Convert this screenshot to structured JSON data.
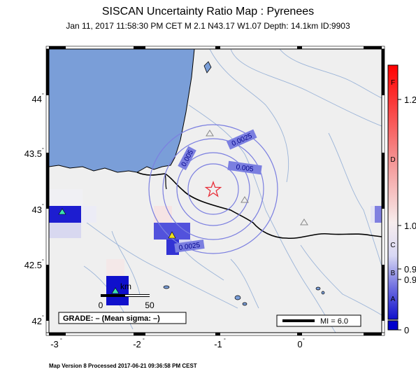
{
  "title": "SISCAN Uncertainty Ratio Map : Pyrenees",
  "subtitle": "Jan 11, 2017 11:58:30 PM CET   M 2.1   N43.17 W1.07   Depth: 14.1km   ID:9903",
  "footer": "Map Version 8 Processed 2017-06-21 09:36:58 PM CEST",
  "map": {
    "lat_ticks": [
      "44",
      "43.5",
      "43",
      "42.5",
      "42"
    ],
    "lon_ticks": [
      "-3",
      "-2",
      "-1",
      "0"
    ],
    "contour_labels": [
      "0.0025",
      "0.005",
      "0.005",
      "0.0025"
    ],
    "grade_label": "GRADE: – (Mean sigma: –)",
    "scale_label": "km",
    "scale_ticks": [
      "0",
      "50"
    ],
    "mi_label": "MI = 6.0"
  },
  "colorbar": {
    "letters": [
      "F",
      "D",
      "C",
      "B",
      "A"
    ],
    "values": [
      "1.2",
      "1.0",
      "0.9",
      "0.9",
      "0"
    ],
    "colors": {
      "top": "#ff0000",
      "mid": "#f7eded",
      "bottom": "#0000cc"
    }
  },
  "colors": {
    "ocean": "#7a9ed8",
    "land": "#efefef",
    "epicenter": "#e8303a",
    "contour": "#7b7fe0"
  }
}
